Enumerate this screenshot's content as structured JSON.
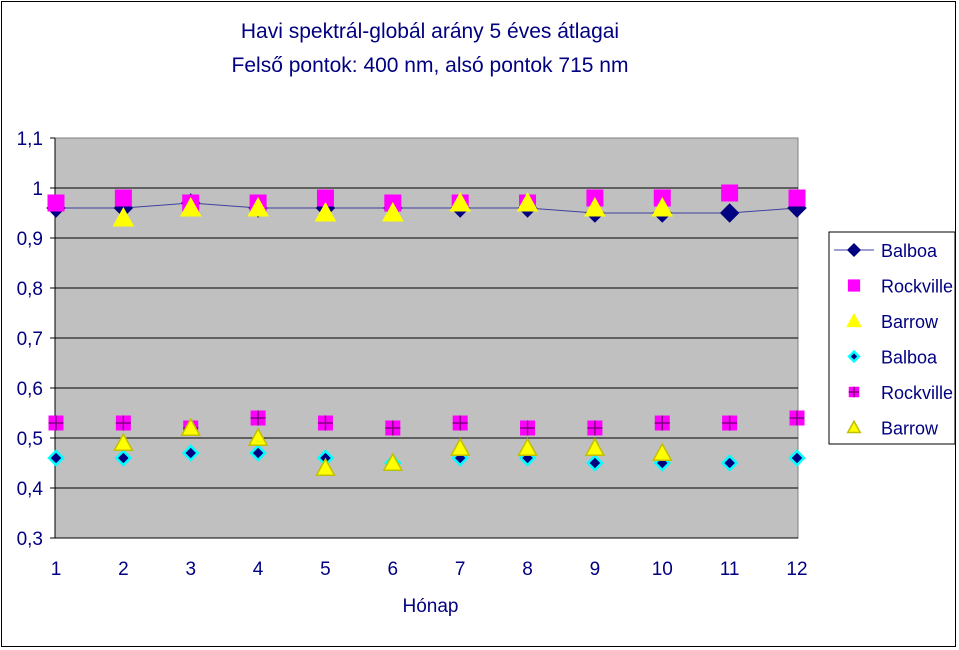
{
  "chart_data": {
    "type": "scatter",
    "title": "Havi spektrál-globál arány 5 éves átlagai",
    "subtitle": "Felső pontok: 400 nm, alsó pontok 715 nm",
    "xlabel": "Hónap",
    "ylabel": "",
    "x": [
      1,
      2,
      3,
      4,
      5,
      6,
      7,
      8,
      9,
      10,
      11,
      12
    ],
    "xlim": [
      1,
      12
    ],
    "ylim": [
      0.3,
      1.1
    ],
    "yticks": [
      "0,3",
      "0,4",
      "0,5",
      "0,6",
      "0,7",
      "0,8",
      "0,9",
      "1",
      "1,1"
    ],
    "xticks": [
      "1",
      "2",
      "3",
      "4",
      "5",
      "6",
      "7",
      "8",
      "9",
      "10",
      "11",
      "12"
    ],
    "grid": true,
    "legend_position": "right",
    "series": [
      {
        "name": "Balboa",
        "marker": "diamond",
        "color": "#000080",
        "edge": "#000080",
        "line": true,
        "values": [
          0.96,
          0.96,
          0.97,
          0.96,
          0.96,
          0.96,
          0.96,
          0.96,
          0.95,
          0.95,
          0.95,
          0.96
        ]
      },
      {
        "name": "Rockville",
        "marker": "square",
        "color": "#ff00ff",
        "edge": "#ff00ff",
        "line": false,
        "values": [
          0.97,
          0.98,
          0.97,
          0.97,
          0.98,
          0.97,
          0.97,
          0.97,
          0.98,
          0.98,
          0.99,
          0.98
        ]
      },
      {
        "name": "Barrow",
        "marker": "triangle",
        "color": "#ffff00",
        "edge": "#ffff00",
        "line": false,
        "values": [
          null,
          0.94,
          0.96,
          0.96,
          0.95,
          0.95,
          0.97,
          0.97,
          0.96,
          0.96,
          null,
          null
        ]
      },
      {
        "name": "Balboa",
        "marker": "diamond-small",
        "color": "#000080",
        "edge": "#00ffff",
        "line": false,
        "values": [
          0.46,
          0.46,
          0.47,
          0.47,
          0.46,
          0.45,
          0.46,
          0.46,
          0.45,
          0.45,
          0.45,
          0.46
        ]
      },
      {
        "name": "Rockville",
        "marker": "square-plus",
        "color": "#ff00ff",
        "edge": "#800080",
        "line": false,
        "values": [
          0.53,
          0.53,
          0.52,
          0.54,
          0.53,
          0.52,
          0.53,
          0.52,
          0.52,
          0.53,
          0.53,
          0.54
        ]
      },
      {
        "name": "Barrow",
        "marker": "triangle-outline",
        "color": "#ffff00",
        "edge": "#c0c000",
        "line": false,
        "values": [
          null,
          0.49,
          0.52,
          0.5,
          0.44,
          0.45,
          0.48,
          0.48,
          0.48,
          0.47,
          null,
          null
        ]
      }
    ]
  }
}
